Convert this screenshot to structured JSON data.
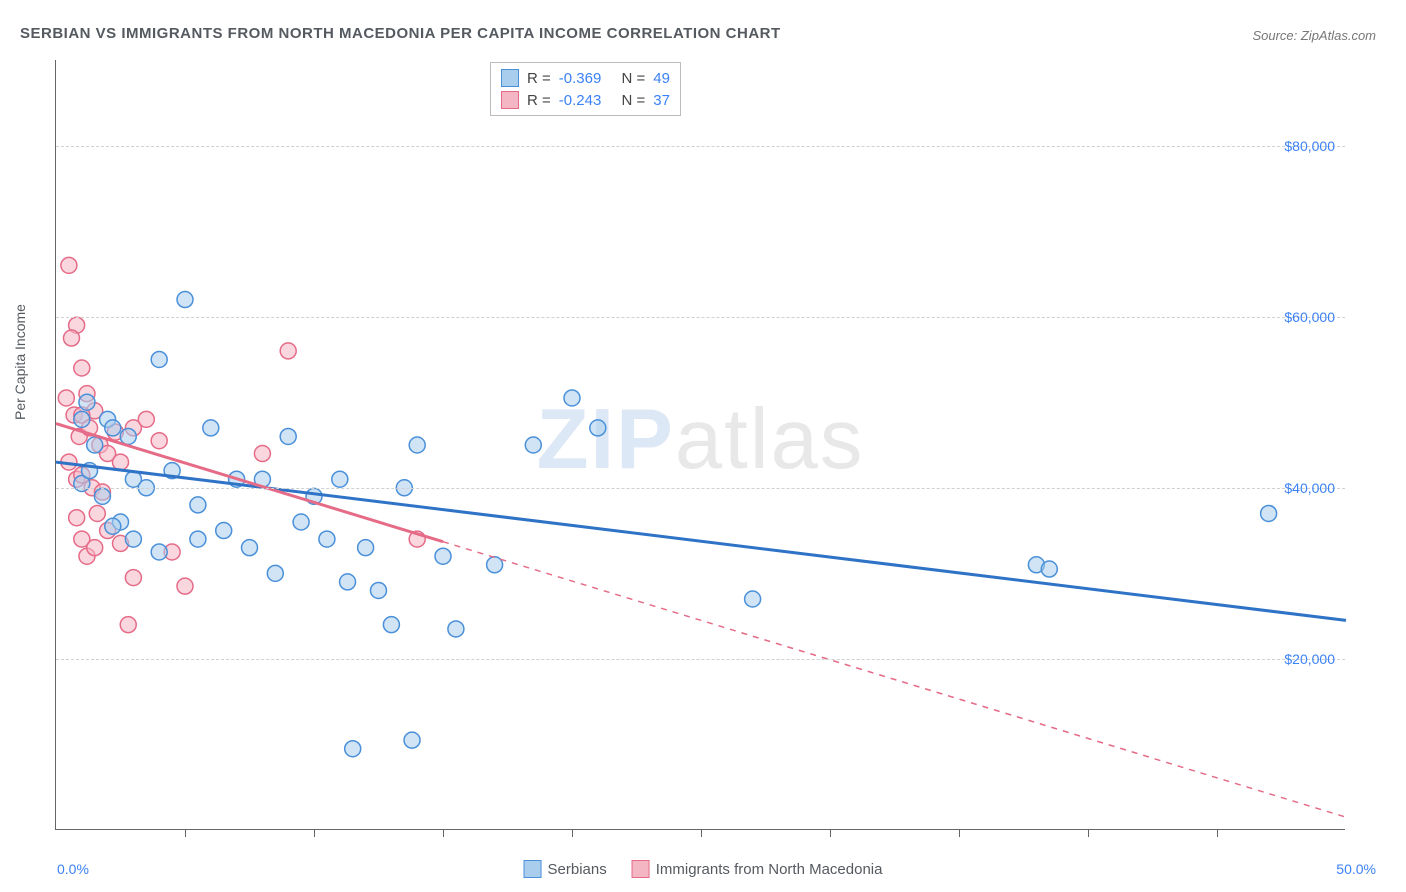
{
  "meta": {
    "title": "SERBIAN VS IMMIGRANTS FROM NORTH MACEDONIA PER CAPITA INCOME CORRELATION CHART",
    "source": "Source: ZipAtlas.com",
    "watermark_a": "ZIP",
    "watermark_b": "atlas"
  },
  "chart": {
    "type": "scatter",
    "ylabel": "Per Capita Income",
    "xlim": [
      0,
      50
    ],
    "ylim": [
      0,
      90000
    ],
    "x_axis_start_label": "0.0%",
    "x_axis_end_label": "50.0%",
    "ytick_values": [
      20000,
      40000,
      60000,
      80000
    ],
    "ytick_labels": [
      "$20,000",
      "$40,000",
      "$60,000",
      "$80,000"
    ],
    "xtick_positions": [
      5,
      10,
      15,
      20,
      25,
      30,
      35,
      40,
      45
    ],
    "background_color": "#ffffff",
    "grid_color": "#d0d0d0",
    "marker_radius": 8,
    "marker_opacity": 0.55,
    "series": [
      {
        "name": "Serbians",
        "fill": "#a9cdec",
        "stroke": "#4a90d9",
        "line_color": "#2f73c7",
        "line_width": 3,
        "R": "-0.369",
        "N": "49",
        "trend": {
          "x1": 0,
          "y1": 43000,
          "x2": 50,
          "y2": 24500,
          "solid_until_x": 50
        },
        "points": [
          [
            1.0,
            48000
          ],
          [
            1.2,
            50000
          ],
          [
            1.5,
            45000
          ],
          [
            1.0,
            40500
          ],
          [
            1.3,
            42000
          ],
          [
            2.0,
            48000
          ],
          [
            2.2,
            47000
          ],
          [
            2.8,
            46000
          ],
          [
            3.0,
            41000
          ],
          [
            3.5,
            40000
          ],
          [
            4.0,
            55000
          ],
          [
            4.5,
            42000
          ],
          [
            5.0,
            62000
          ],
          [
            5.5,
            38000
          ],
          [
            6.0,
            47000
          ],
          [
            6.5,
            35000
          ],
          [
            7.0,
            41000
          ],
          [
            7.5,
            33000
          ],
          [
            8.0,
            41000
          ],
          [
            8.5,
            30000
          ],
          [
            9.0,
            46000
          ],
          [
            9.5,
            36000
          ],
          [
            10.0,
            39000
          ],
          [
            10.5,
            34000
          ],
          [
            11.0,
            41000
          ],
          [
            11.3,
            29000
          ],
          [
            12.0,
            33000
          ],
          [
            12.5,
            28000
          ],
          [
            13.5,
            40000
          ],
          [
            14.0,
            45000
          ],
          [
            15.0,
            32000
          ],
          [
            11.5,
            9500
          ],
          [
            13.0,
            24000
          ],
          [
            15.5,
            23500
          ],
          [
            17.0,
            31000
          ],
          [
            18.5,
            45000
          ],
          [
            20.0,
            50500
          ],
          [
            21.0,
            47000
          ],
          [
            13.8,
            10500
          ],
          [
            27.0,
            27000
          ],
          [
            38.0,
            31000
          ],
          [
            38.5,
            30500
          ],
          [
            47.0,
            37000
          ],
          [
            3.0,
            34000
          ],
          [
            4.0,
            32500
          ],
          [
            2.5,
            36000
          ],
          [
            1.8,
            39000
          ],
          [
            2.2,
            35500
          ],
          [
            5.5,
            34000
          ]
        ]
      },
      {
        "name": "Immigrants from North Macedonia",
        "fill": "#f5b6c4",
        "stroke": "#e56b87",
        "line_color": "#e56b87",
        "line_width": 3,
        "R": "-0.243",
        "N": "37",
        "trend": {
          "x1": 0,
          "y1": 47500,
          "x2": 50,
          "y2": 1500,
          "solid_until_x": 15
        },
        "points": [
          [
            0.5,
            66000
          ],
          [
            0.8,
            59000
          ],
          [
            0.6,
            57500
          ],
          [
            1.0,
            54000
          ],
          [
            0.4,
            50500
          ],
          [
            0.7,
            48500
          ],
          [
            1.2,
            51000
          ],
          [
            1.5,
            49000
          ],
          [
            0.9,
            46000
          ],
          [
            1.0,
            48500
          ],
          [
            1.3,
            47000
          ],
          [
            1.7,
            45000
          ],
          [
            0.5,
            43000
          ],
          [
            0.8,
            41000
          ],
          [
            1.0,
            41500
          ],
          [
            1.4,
            40000
          ],
          [
            1.8,
            39500
          ],
          [
            2.0,
            44000
          ],
          [
            2.3,
            46500
          ],
          [
            2.5,
            43000
          ],
          [
            3.0,
            47000
          ],
          [
            3.5,
            48000
          ],
          [
            4.0,
            45500
          ],
          [
            1.6,
            37000
          ],
          [
            2.0,
            35000
          ],
          [
            2.5,
            33500
          ],
          [
            1.0,
            34000
          ],
          [
            1.2,
            32000
          ],
          [
            0.8,
            36500
          ],
          [
            1.5,
            33000
          ],
          [
            4.5,
            32500
          ],
          [
            3.0,
            29500
          ],
          [
            2.8,
            24000
          ],
          [
            5.0,
            28500
          ],
          [
            9.0,
            56000
          ],
          [
            14.0,
            34000
          ],
          [
            8.0,
            44000
          ]
        ]
      }
    ]
  },
  "legend": {
    "r_label": "R =",
    "n_label": "N ="
  }
}
